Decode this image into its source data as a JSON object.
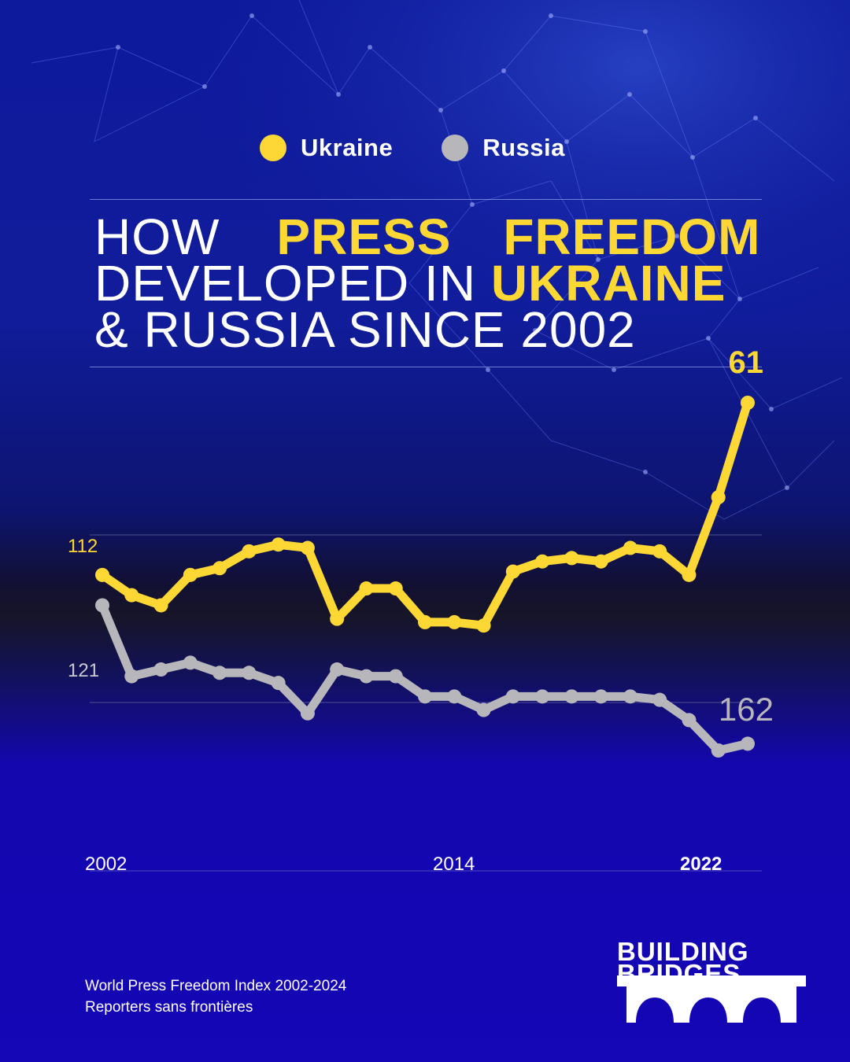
{
  "legend": [
    {
      "label": "Ukraine",
      "color": "#fdd835"
    },
    {
      "label": "Russia",
      "color": "#b7b7bb"
    }
  ],
  "title": {
    "line1_a": "HOW",
    "line1_b": "PRESS",
    "line1_c": "FREEDOM",
    "line2_a": "DEVELOPED IN ",
    "line2_b": "UKRAINE",
    "line3": "& RUSSIA SINCE 2002"
  },
  "chart_data": {
    "type": "line",
    "x": [
      2002,
      2003,
      2004,
      2005,
      2006,
      2007,
      2008,
      2009,
      2010,
      2011,
      2012,
      2013,
      2014,
      2015,
      2016,
      2017,
      2018,
      2019,
      2020,
      2021,
      2022,
      2023,
      2024
    ],
    "series": [
      {
        "name": "Ukraine",
        "color": "#fdd835",
        "values": [
          112,
          118,
          121,
          112,
          110,
          105,
          103,
          104,
          125,
          116,
          116,
          126,
          126,
          127,
          111,
          108,
          107,
          108,
          104,
          105,
          112,
          89,
          61
        ]
      },
      {
        "name": "Russia",
        "color": "#b7b7bb",
        "values": [
          121,
          142,
          140,
          138,
          141,
          141,
          144,
          153,
          140,
          142,
          142,
          148,
          148,
          152,
          148,
          148,
          148,
          148,
          148,
          149,
          155,
          164,
          162
        ]
      }
    ],
    "annotations": {
      "ukraine_start": "112",
      "russia_start": "121",
      "ukraine_end": "61",
      "russia_end": "162"
    },
    "x_ticks": [
      {
        "year": 2002,
        "label": "2002",
        "bold": false
      },
      {
        "year": 2014,
        "label": "2014",
        "bold": false
      },
      {
        "year": 2022,
        "label": "2022",
        "bold": true
      }
    ],
    "y_scale": "ranks plotted with rank 1 at the top"
  },
  "footer": {
    "line1": "World Press Freedom Index 2002-2024",
    "line2": "Reporters sans frontières"
  },
  "logo": {
    "line1": "BUILDING",
    "line2": "BRIDGES"
  }
}
